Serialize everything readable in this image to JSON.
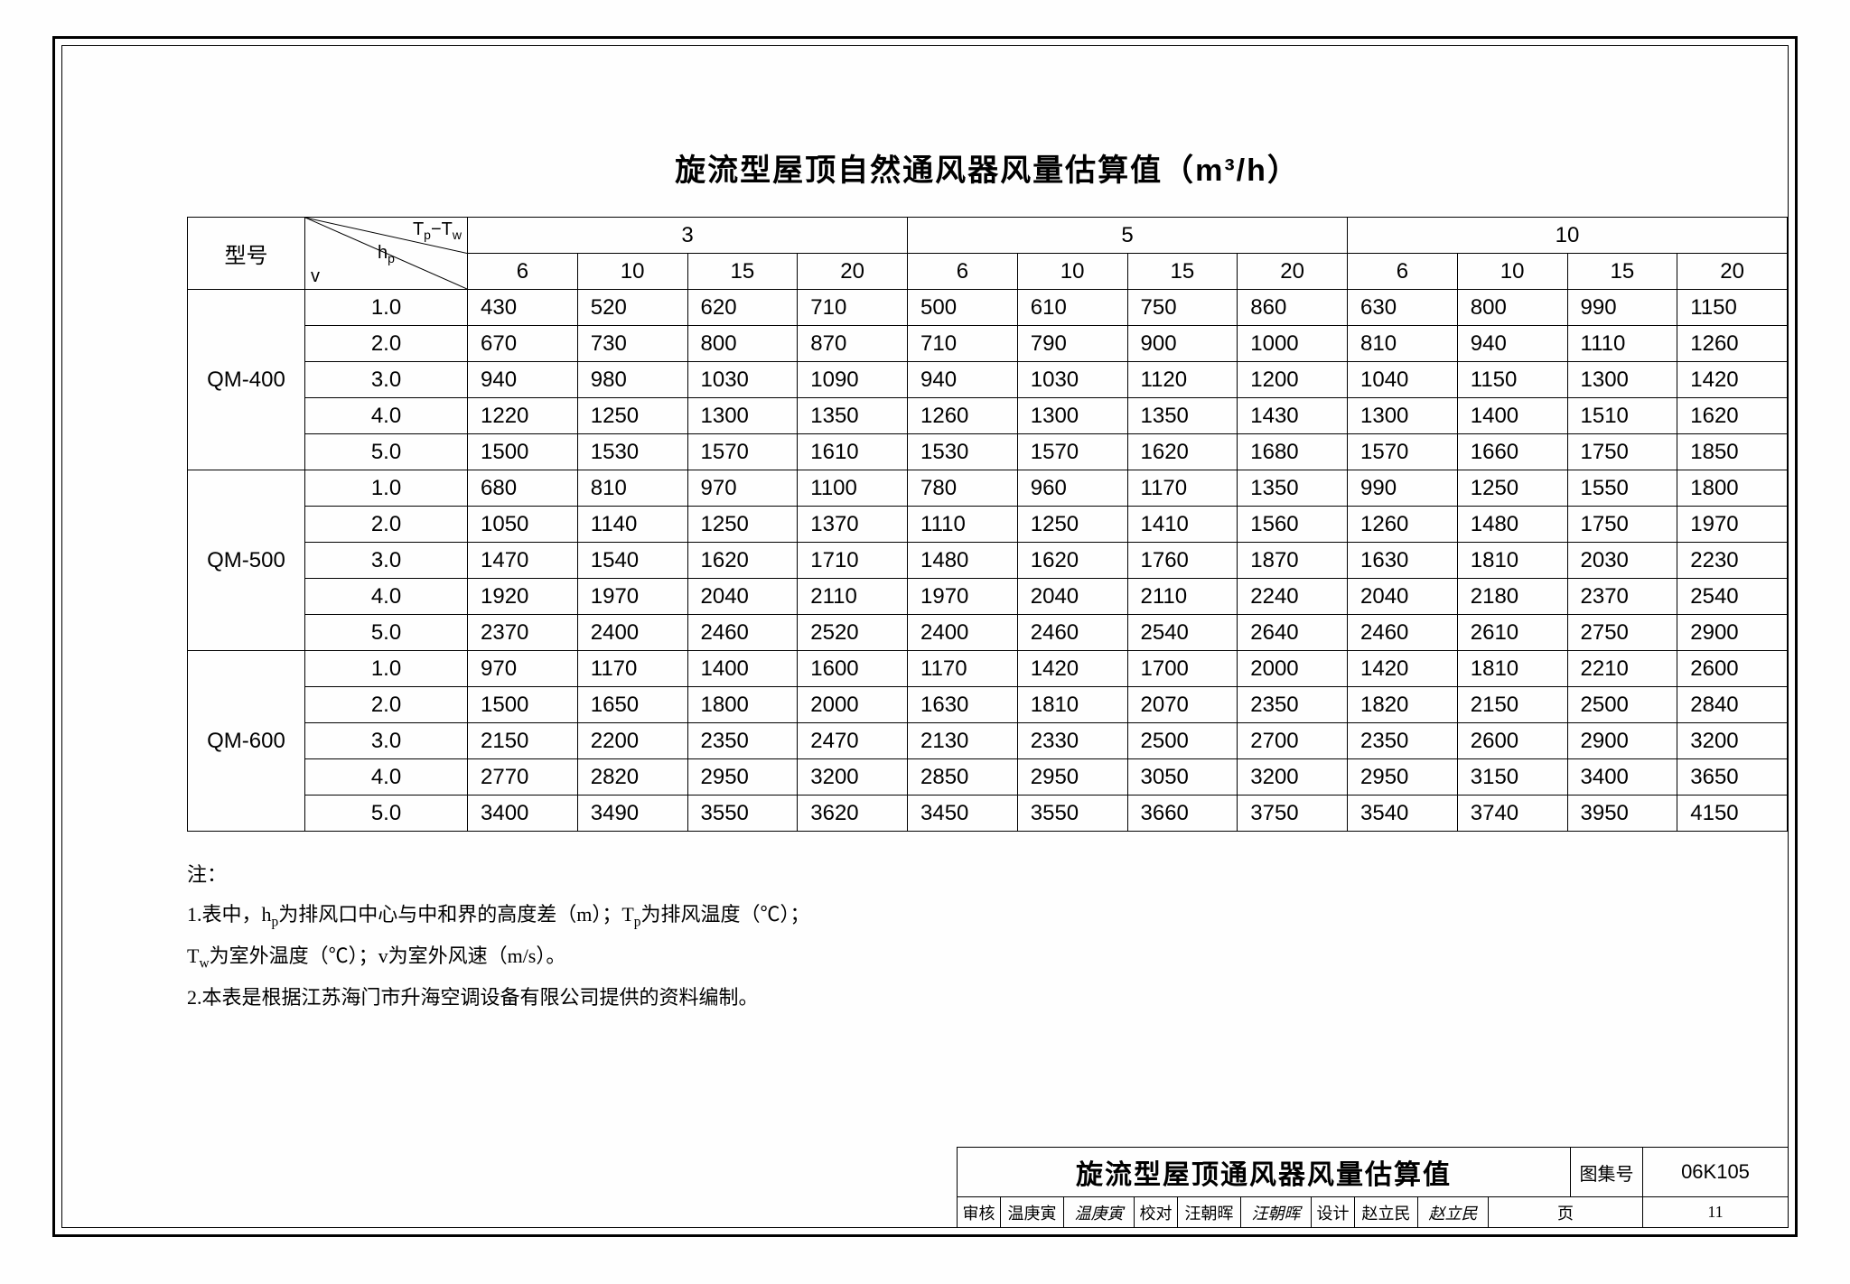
{
  "title": "旋流型屋顶自然通风器风量估算值（m³/h）",
  "header": {
    "model_label": "型号",
    "diag_tp": "Tp−Tw",
    "diag_hp": "hp",
    "diag_v": "v",
    "groups": [
      "3",
      "5",
      "10"
    ],
    "subcols": [
      "6",
      "10",
      "15",
      "20"
    ]
  },
  "models": [
    {
      "name": "QM-400",
      "rows": [
        {
          "hp": "1.0",
          "v": [
            "430",
            "520",
            "620",
            "710",
            "500",
            "610",
            "750",
            "860",
            "630",
            "800",
            "990",
            "1150"
          ]
        },
        {
          "hp": "2.0",
          "v": [
            "670",
            "730",
            "800",
            "870",
            "710",
            "790",
            "900",
            "1000",
            "810",
            "940",
            "1110",
            "1260"
          ]
        },
        {
          "hp": "3.0",
          "v": [
            "940",
            "980",
            "1030",
            "1090",
            "940",
            "1030",
            "1120",
            "1200",
            "1040",
            "1150",
            "1300",
            "1420"
          ]
        },
        {
          "hp": "4.0",
          "v": [
            "1220",
            "1250",
            "1300",
            "1350",
            "1260",
            "1300",
            "1350",
            "1430",
            "1300",
            "1400",
            "1510",
            "1620"
          ]
        },
        {
          "hp": "5.0",
          "v": [
            "1500",
            "1530",
            "1570",
            "1610",
            "1530",
            "1570",
            "1620",
            "1680",
            "1570",
            "1660",
            "1750",
            "1850"
          ]
        }
      ]
    },
    {
      "name": "QM-500",
      "rows": [
        {
          "hp": "1.0",
          "v": [
            "680",
            "810",
            "970",
            "1100",
            "780",
            "960",
            "1170",
            "1350",
            "990",
            "1250",
            "1550",
            "1800"
          ]
        },
        {
          "hp": "2.0",
          "v": [
            "1050",
            "1140",
            "1250",
            "1370",
            "1110",
            "1250",
            "1410",
            "1560",
            "1260",
            "1480",
            "1750",
            "1970"
          ]
        },
        {
          "hp": "3.0",
          "v": [
            "1470",
            "1540",
            "1620",
            "1710",
            "1480",
            "1620",
            "1760",
            "1870",
            "1630",
            "1810",
            "2030",
            "2230"
          ]
        },
        {
          "hp": "4.0",
          "v": [
            "1920",
            "1970",
            "2040",
            "2110",
            "1970",
            "2040",
            "2110",
            "2240",
            "2040",
            "2180",
            "2370",
            "2540"
          ]
        },
        {
          "hp": "5.0",
          "v": [
            "2370",
            "2400",
            "2460",
            "2520",
            "2400",
            "2460",
            "2540",
            "2640",
            "2460",
            "2610",
            "2750",
            "2900"
          ]
        }
      ]
    },
    {
      "name": "QM-600",
      "rows": [
        {
          "hp": "1.0",
          "v": [
            "970",
            "1170",
            "1400",
            "1600",
            "1170",
            "1420",
            "1700",
            "2000",
            "1420",
            "1810",
            "2210",
            "2600"
          ]
        },
        {
          "hp": "2.0",
          "v": [
            "1500",
            "1650",
            "1800",
            "2000",
            "1630",
            "1810",
            "2070",
            "2350",
            "1820",
            "2150",
            "2500",
            "2840"
          ]
        },
        {
          "hp": "3.0",
          "v": [
            "2150",
            "2200",
            "2350",
            "2470",
            "2130",
            "2330",
            "2500",
            "2700",
            "2350",
            "2600",
            "2900",
            "3200"
          ]
        },
        {
          "hp": "4.0",
          "v": [
            "2770",
            "2820",
            "2950",
            "3200",
            "2850",
            "2950",
            "3050",
            "3200",
            "2950",
            "3150",
            "3400",
            "3650"
          ]
        },
        {
          "hp": "5.0",
          "v": [
            "3400",
            "3490",
            "3550",
            "3620",
            "3450",
            "3550",
            "3660",
            "3750",
            "3540",
            "3740",
            "3950",
            "4150"
          ]
        }
      ]
    }
  ],
  "notes": {
    "label": "注：",
    "line1": "1.表中，hp为排风口中心与中和界的高度差（m）；Tp为排风温度（℃）；",
    "line2": "Tw为室外温度（℃）；v为室外风速（m/s）。",
    "line3": "2.本表是根据江苏海门市升海空调设备有限公司提供的资料编制。"
  },
  "titleblock": {
    "title": "旋流型屋顶通风器风量估算值",
    "atlas_label": "图集号",
    "atlas_code": "06K105",
    "row2": {
      "audit_l": "审核",
      "audit_n": "温庚寅",
      "audit_s": "温庚寅",
      "check_l": "校对",
      "check_n": "汪朝晖",
      "check_s": "汪朝晖",
      "design_l": "设计",
      "design_n": "赵立民",
      "design_s": "赵立民",
      "page_l": "页",
      "page_n": "11"
    }
  },
  "style": {
    "border_color": "#000000",
    "bg_color": "#fefefe",
    "title_fontsize": 34,
    "cell_fontsize": 24,
    "notes_fontsize": 22
  }
}
